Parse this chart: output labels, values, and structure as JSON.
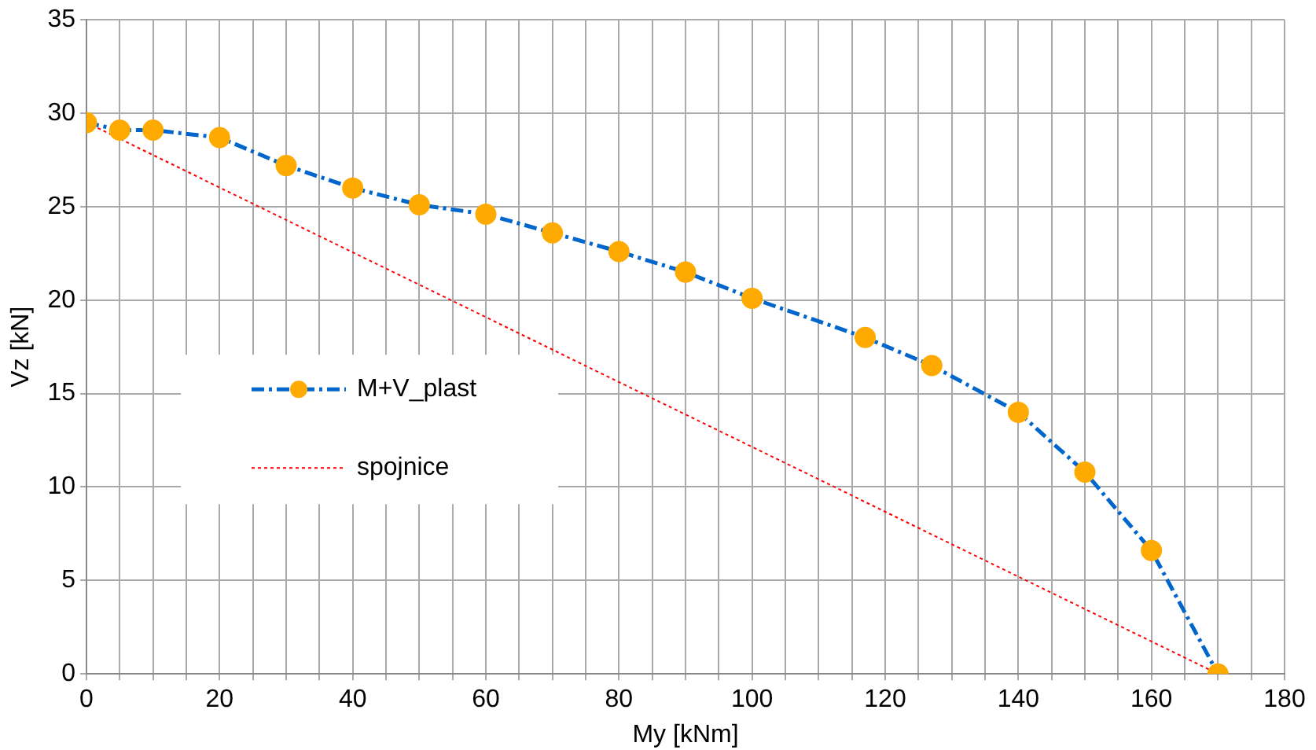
{
  "chart_data": {
    "type": "line",
    "xlabel": "My [kNm]",
    "ylabel": "Vz [kN]",
    "xlim": [
      0,
      180
    ],
    "ylim": [
      0,
      35
    ],
    "xticks": [
      0,
      {
        "value": 5,
        "label": null
      },
      {
        "value": 10,
        "label": null
      },
      {
        "value": 15,
        "label": null
      },
      20,
      {
        "value": 25,
        "label": null
      },
      {
        "value": 30,
        "label": null
      },
      {
        "value": 35,
        "label": null
      },
      40,
      {
        "value": 45,
        "label": null
      },
      {
        "value": 50,
        "label": null
      },
      {
        "value": 55,
        "label": null
      },
      60,
      {
        "value": 65,
        "label": null
      },
      {
        "value": 70,
        "label": null
      },
      {
        "value": 75,
        "label": null
      },
      80,
      {
        "value": 85,
        "label": null
      },
      {
        "value": 90,
        "label": null
      },
      {
        "value": 95,
        "label": null
      },
      100,
      {
        "value": 105,
        "label": null
      },
      {
        "value": 110,
        "label": null
      },
      {
        "value": 115,
        "label": null
      },
      120,
      {
        "value": 125,
        "label": null
      },
      {
        "value": 130,
        "label": null
      },
      {
        "value": 135,
        "label": null
      },
      140,
      {
        "value": 145,
        "label": null
      },
      {
        "value": 150,
        "label": null
      },
      {
        "value": 155,
        "label": null
      },
      160,
      {
        "value": 165,
        "label": null
      },
      {
        "value": 170,
        "label": null
      },
      {
        "value": 175,
        "label": null
      },
      180
    ],
    "yticks": [
      0,
      5,
      10,
      15,
      20,
      25,
      30,
      35
    ],
    "grid": true,
    "legend": "left",
    "series": [
      {
        "name": "M+V_plast",
        "color": "#0066cc",
        "marker": "circle",
        "line_style": "dashed",
        "colors": [
          "#ffaa00",
          "#ffaa00",
          "#ffaa00",
          "#ffaa00",
          "#ffaa00",
          "#ffaa00",
          "#ffaa00",
          "#ffaa00",
          "#ffaa00",
          "#ffaa00",
          "#ffaa00",
          "#ffaa00",
          "#ffaa00",
          "#ffaa00",
          "#ffaa00",
          "#ffaa00",
          "#ffaa00",
          "#ffaa00"
        ],
        "x": [
          0,
          5,
          10,
          20,
          30,
          40,
          50,
          60,
          70,
          80,
          90,
          100,
          117,
          127,
          140,
          150,
          160,
          170
        ],
        "values": [
          29.5,
          29.1,
          29.1,
          28.7,
          27.2,
          26.0,
          25.1,
          24.6,
          23.6,
          22.6,
          21.5,
          20.1,
          18.0,
          16.5,
          14.0,
          10.8,
          6.6,
          0
        ]
      },
      {
        "name": "spojnice",
        "color": "#ff0000",
        "marker": "none",
        "line_style": "dotted",
        "x": [
          0,
          170
        ],
        "values": [
          29.5,
          0
        ]
      }
    ]
  }
}
